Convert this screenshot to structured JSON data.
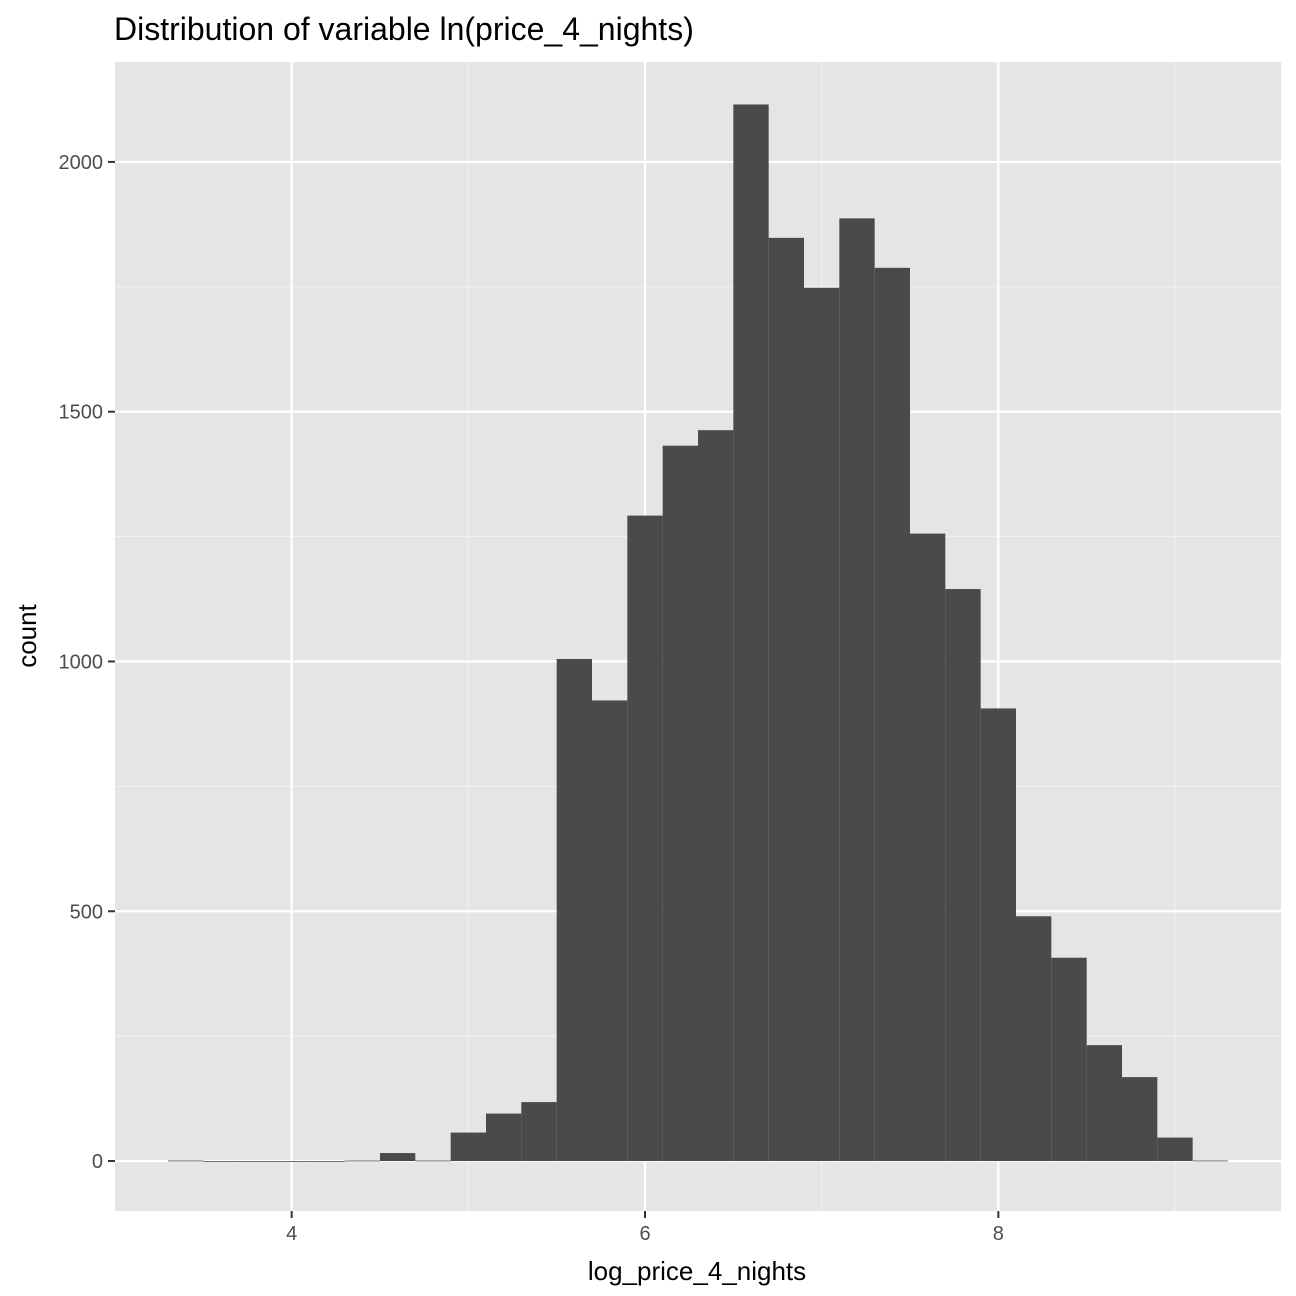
{
  "chart_data": {
    "type": "bar",
    "title": "Distribution of variable ln(price_4_nights)",
    "xlabel": "log_price_4_nights",
    "ylabel": "count",
    "xlim": [
      3.0,
      9.6
    ],
    "ylim": [
      -100,
      2200
    ],
    "x_ticks": [
      4,
      6,
      8
    ],
    "x_tick_labels": [
      "4",
      "6",
      "8"
    ],
    "y_ticks": [
      0,
      500,
      1000,
      1500,
      2000
    ],
    "y_tick_labels": [
      "0",
      "500",
      "1000",
      "1500",
      "2000"
    ],
    "grid": true,
    "bin_width": 0.2,
    "bin_starts": [
      3.3,
      3.5,
      3.7,
      3.9,
      4.1,
      4.3,
      4.5,
      4.7,
      4.9,
      5.1,
      5.3,
      5.5,
      5.7,
      5.9,
      6.1,
      6.3,
      6.5,
      6.7,
      6.9,
      7.1,
      7.3,
      7.5,
      7.7,
      7.9,
      8.1,
      8.3,
      8.5,
      8.7,
      8.9,
      9.1
    ],
    "values": [
      1,
      0,
      0,
      0,
      0,
      1,
      16,
      1,
      57,
      95,
      118,
      1005,
      922,
      1292,
      1432,
      1463,
      2115,
      1848,
      1748,
      1887,
      1788,
      1256,
      1145,
      906,
      490,
      407,
      232,
      168,
      47,
      1
    ],
    "colors": {
      "panel": "#e5e5e5",
      "grid_major": "#ffffff",
      "grid_minor": "#f2f2f2",
      "bar": "#4a4a4a",
      "tick": "#333333"
    }
  }
}
